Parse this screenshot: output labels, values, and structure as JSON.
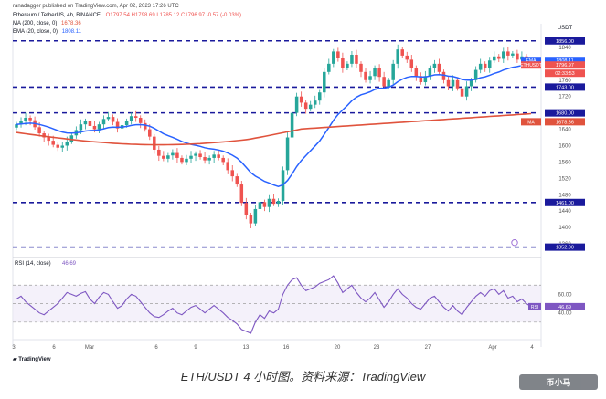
{
  "header": {
    "publisher": "ranadagger published on TradingView.com, Apr 02, 2023 17:26 UTC",
    "symbol": "Ethereum / TetherUS, 4h, BINANCE",
    "ohlc": "O1797.54  H1798.69  L1785.12  C1796.97  -0.57 (-0.03%)",
    "ma_label": "MA (200, close, 0)",
    "ma_value": "1678.36",
    "ema_label": "EMA (20, close, 0)",
    "ema_value": "1808.11",
    "currency": "USDT"
  },
  "colors": {
    "up": "#26a69a",
    "down": "#ef5350",
    "ema": "#2962ff",
    "ma": "#e0533d",
    "rsi": "#7e57c2",
    "level": "#1a1a9c"
  },
  "chart_data": [
    {
      "type": "candlestick",
      "title": "ETH/USDT 4h",
      "ylim": [
        1340,
        1880
      ],
      "y_ticks": [
        1360,
        1400,
        1440,
        1480,
        1520,
        1560,
        1600,
        1640,
        1680,
        1720,
        1760,
        1800,
        1840
      ],
      "x_ticks": [
        "3",
        "6",
        "Mar",
        "6",
        "9",
        "13",
        "16",
        "20",
        "23",
        "27",
        "Apr",
        "4"
      ],
      "horizontal_levels": [
        1352.0,
        1461.0,
        1680.0,
        1743.0,
        1856.0
      ],
      "price_labels": [
        {
          "text": "EMA",
          "value": "1808.11"
        },
        {
          "text": "ETHUSDT",
          "value": "1796.97"
        },
        {
          "text": "",
          "value": "02:33:53"
        },
        {
          "text": "MA",
          "value": "1678.36"
        },
        {
          "text": "",
          "value": "1743.00"
        },
        {
          "text": "",
          "value": "1680.00"
        },
        {
          "text": "",
          "value": "1461.00"
        },
        {
          "text": "",
          "value": "1352.00"
        }
      ],
      "close": [
        1652,
        1660,
        1668,
        1662,
        1645,
        1630,
        1620,
        1612,
        1602,
        1595,
        1600,
        1610,
        1625,
        1638,
        1652,
        1660,
        1648,
        1640,
        1652,
        1665,
        1670,
        1658,
        1642,
        1650,
        1660,
        1672,
        1668,
        1655,
        1640,
        1622,
        1590,
        1575,
        1568,
        1576,
        1582,
        1570,
        1560,
        1568,
        1575,
        1580,
        1572,
        1564,
        1570,
        1578,
        1570,
        1560,
        1540,
        1525,
        1505,
        1460,
        1430,
        1410,
        1445,
        1462,
        1450,
        1470,
        1458,
        1465,
        1540,
        1620,
        1680,
        1720,
        1705,
        1690,
        1700,
        1710,
        1730,
        1780,
        1800,
        1830,
        1815,
        1790,
        1800,
        1822,
        1800,
        1780,
        1760,
        1770,
        1790,
        1768,
        1745,
        1760,
        1800,
        1835,
        1820,
        1810,
        1790,
        1770,
        1755,
        1770,
        1790,
        1800,
        1780,
        1760,
        1745,
        1760,
        1740,
        1720,
        1745,
        1760,
        1785,
        1800,
        1790,
        1808,
        1818,
        1812,
        1830,
        1820,
        1825,
        1810,
        1818,
        1803,
        1797
      ]
    },
    {
      "type": "line",
      "title": "RSI (14, close)",
      "current": "46.69",
      "ylim": [
        15,
        90
      ],
      "y_ticks": [
        40,
        60
      ],
      "band": [
        30,
        70
      ],
      "values": [
        55,
        58,
        52,
        48,
        44,
        40,
        38,
        42,
        46,
        50,
        56,
        62,
        60,
        58,
        61,
        63,
        55,
        50,
        57,
        62,
        60,
        52,
        45,
        48,
        55,
        60,
        58,
        52,
        46,
        40,
        36,
        35,
        38,
        42,
        45,
        40,
        38,
        42,
        46,
        48,
        44,
        40,
        44,
        48,
        44,
        40,
        35,
        32,
        28,
        22,
        20,
        18,
        30,
        38,
        34,
        42,
        40,
        44,
        60,
        70,
        76,
        78,
        70,
        64,
        66,
        68,
        72,
        74,
        76,
        80,
        72,
        62,
        66,
        70,
        62,
        56,
        52,
        56,
        62,
        54,
        46,
        52,
        60,
        66,
        60,
        56,
        50,
        46,
        44,
        50,
        56,
        58,
        52,
        46,
        42,
        48,
        42,
        38,
        46,
        52,
        58,
        62,
        58,
        64,
        66,
        60,
        64,
        56,
        58,
        52,
        55,
        50,
        46.69
      ]
    }
  ],
  "footer": {
    "caption": "ETH/USDT 4 小时图。资料来源：TradingView",
    "logo": "TradingView",
    "watermark": "币小马"
  }
}
